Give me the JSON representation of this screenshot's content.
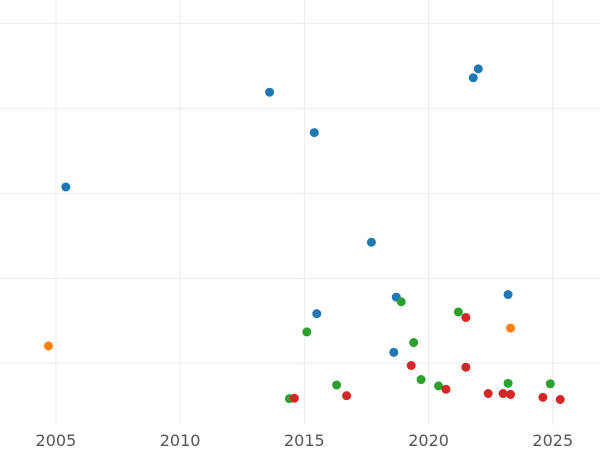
{
  "chart_data": {
    "type": "scatter",
    "title": "",
    "xlabel": "",
    "ylabel": "",
    "xlim": [
      2002.75,
      2026.9
    ],
    "ylim": [
      0,
      100
    ],
    "x_ticks": [
      2005,
      2010,
      2015,
      2020,
      2025
    ],
    "y_gridlines": [
      14.5,
      34.5,
      54.5,
      74.5,
      94.5
    ],
    "grid": true,
    "legend": "none",
    "series": [
      {
        "color": "#1f77b4",
        "points": [
          {
            "x": 2005.4,
            "y": 56.0
          },
          {
            "x": 2013.6,
            "y": 78.3
          },
          {
            "x": 2015.4,
            "y": 68.8
          },
          {
            "x": 2015.5,
            "y": 26.2
          },
          {
            "x": 2017.7,
            "y": 43.0
          },
          {
            "x": 2018.6,
            "y": 17.1
          },
          {
            "x": 2018.7,
            "y": 30.1
          },
          {
            "x": 2021.8,
            "y": 81.7
          },
          {
            "x": 2022.0,
            "y": 83.8
          },
          {
            "x": 2023.2,
            "y": 30.7
          }
        ]
      },
      {
        "color": "#ff7f0e",
        "points": [
          {
            "x": 2004.7,
            "y": 18.6
          },
          {
            "x": 2023.3,
            "y": 22.8
          }
        ]
      },
      {
        "color": "#2ca02c",
        "points": [
          {
            "x": 2014.4,
            "y": 6.2
          },
          {
            "x": 2015.1,
            "y": 21.9
          },
          {
            "x": 2016.3,
            "y": 9.4
          },
          {
            "x": 2018.9,
            "y": 29.0
          },
          {
            "x": 2019.4,
            "y": 19.4
          },
          {
            "x": 2019.7,
            "y": 10.7
          },
          {
            "x": 2020.4,
            "y": 9.2
          },
          {
            "x": 2021.2,
            "y": 26.6
          },
          {
            "x": 2023.2,
            "y": 9.8
          },
          {
            "x": 2024.9,
            "y": 9.7
          }
        ]
      },
      {
        "color": "#d62728",
        "points": [
          {
            "x": 2014.6,
            "y": 6.3
          },
          {
            "x": 2016.7,
            "y": 6.9
          },
          {
            "x": 2019.3,
            "y": 14.0
          },
          {
            "x": 2020.7,
            "y": 8.4
          },
          {
            "x": 2021.5,
            "y": 25.3
          },
          {
            "x": 2021.5,
            "y": 13.6
          },
          {
            "x": 2022.4,
            "y": 7.4
          },
          {
            "x": 2023.0,
            "y": 7.4
          },
          {
            "x": 2023.3,
            "y": 7.2
          },
          {
            "x": 2024.6,
            "y": 6.5
          },
          {
            "x": 2025.3,
            "y": 6.0
          }
        ]
      }
    ]
  }
}
